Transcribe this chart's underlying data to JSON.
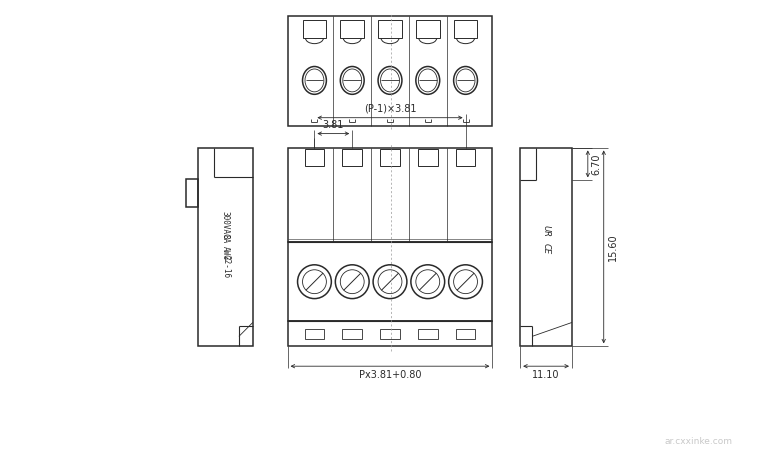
{
  "bg_color": "#ffffff",
  "line_color": "#2a2a2a",
  "dim_color": "#2a2a2a",
  "lw": 0.8,
  "lw_thick": 1.1,
  "lw_dim": 0.6,
  "num_poles": 5,
  "watermark": "ar.cxxinke.com",
  "labels": {
    "dim1": "(P-1)×3.81",
    "dim2": "3.81",
    "dim3": "Px3.81+0.80",
    "dim4": "6.70",
    "dim5": "15.60",
    "dim6": "11.10"
  }
}
